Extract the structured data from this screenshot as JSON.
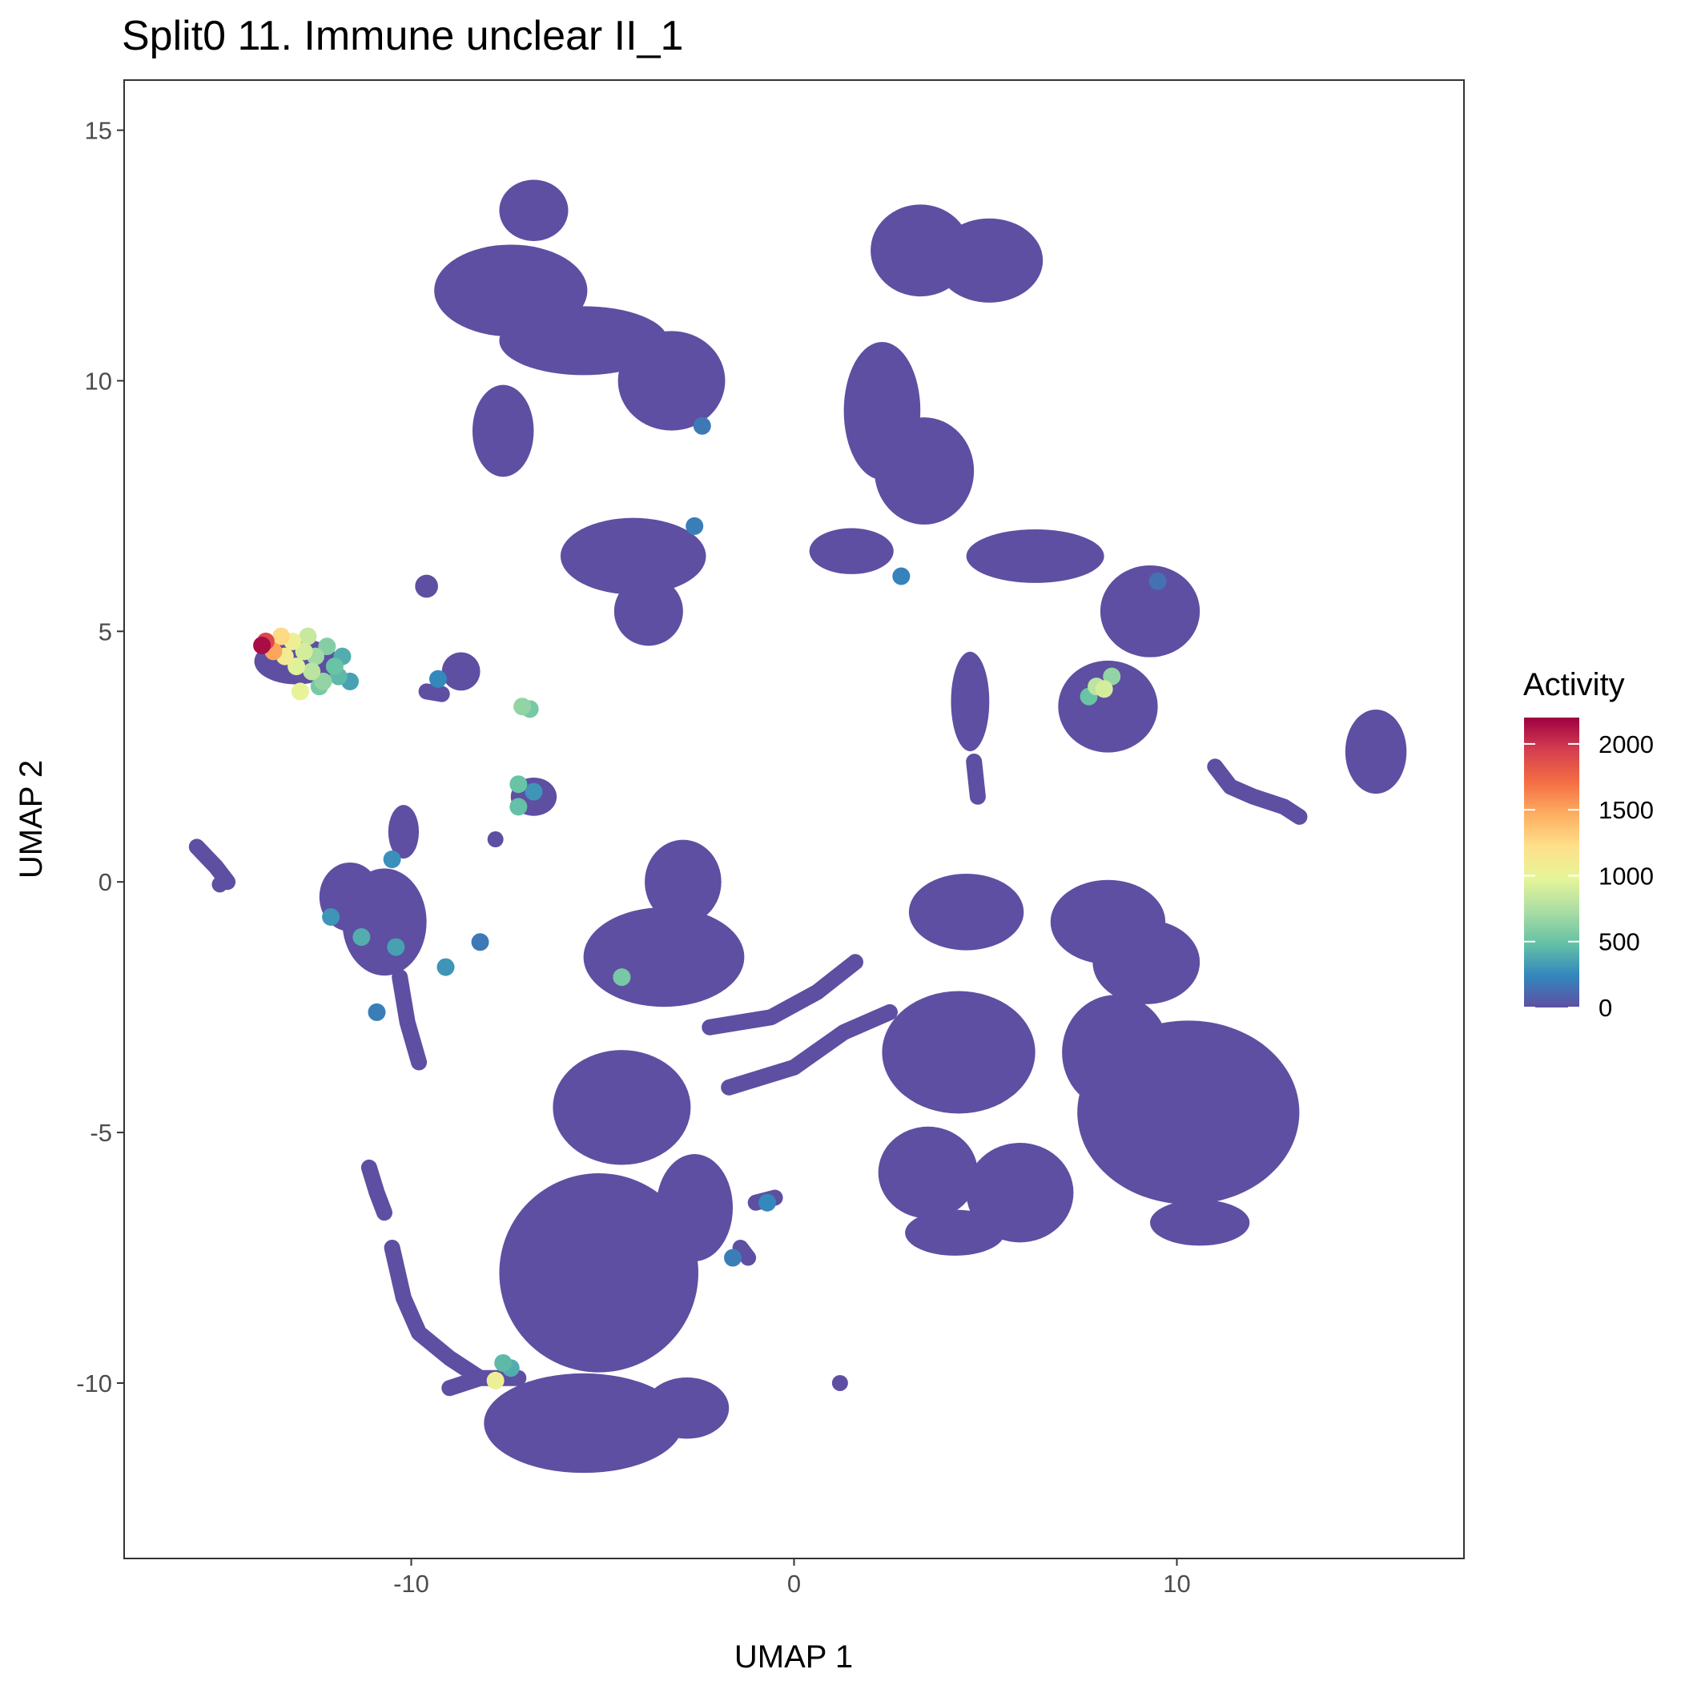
{
  "chart_data": {
    "type": "scatter",
    "title": "Split0 11. Immune unclear II_1",
    "xlabel": "UMAP 1",
    "ylabel": "UMAP 2",
    "xlim": [
      -17.5,
      17.5
    ],
    "ylim": [
      -13.5,
      16
    ],
    "x_ticks": [
      -10,
      0,
      10
    ],
    "x_tick_labels": [
      "-10",
      "0",
      "10"
    ],
    "y_ticks": [
      -10,
      -5,
      0,
      5,
      10,
      15
    ],
    "y_tick_labels": [
      "-10",
      "-5",
      "0",
      "5",
      "10",
      "15"
    ],
    "grid": false,
    "legend": {
      "title": "Activity",
      "position": "right",
      "min": 0,
      "max": 2200,
      "ticks": [
        0,
        500,
        1000,
        1500,
        2000
      ],
      "tick_labels": [
        "0",
        "500",
        "1000",
        "1500",
        "2000"
      ],
      "colormap": [
        "#5e4fa2",
        "#3288bd",
        "#66c2a5",
        "#abdda4",
        "#e6f598",
        "#fee08b",
        "#fdae61",
        "#f46d43",
        "#d53e4f",
        "#9e0142"
      ]
    },
    "points": [
      {
        "x": -13.9,
        "y": 4.72,
        "v": 2150
      },
      {
        "x": -13.8,
        "y": 4.8,
        "v": 1900
      },
      {
        "x": -13.6,
        "y": 4.6,
        "v": 1500
      },
      {
        "x": -13.4,
        "y": 4.9,
        "v": 1250
      },
      {
        "x": -13.3,
        "y": 4.5,
        "v": 1100
      },
      {
        "x": -13.1,
        "y": 4.8,
        "v": 1050
      },
      {
        "x": -13.0,
        "y": 4.3,
        "v": 950
      },
      {
        "x": -12.8,
        "y": 4.6,
        "v": 900
      },
      {
        "x": -12.7,
        "y": 4.9,
        "v": 850
      },
      {
        "x": -12.6,
        "y": 4.2,
        "v": 800
      },
      {
        "x": -12.5,
        "y": 4.5,
        "v": 700
      },
      {
        "x": -12.3,
        "y": 4.0,
        "v": 650
      },
      {
        "x": -12.2,
        "y": 4.7,
        "v": 600
      },
      {
        "x": -12.0,
        "y": 4.3,
        "v": 500
      },
      {
        "x": -11.9,
        "y": 4.1,
        "v": 450
      },
      {
        "x": -11.8,
        "y": 4.5,
        "v": 400
      },
      {
        "x": -11.6,
        "y": 4.0,
        "v": 350
      },
      {
        "x": -12.9,
        "y": 3.8,
        "v": 1000
      },
      {
        "x": -12.4,
        "y": 3.9,
        "v": 550
      },
      {
        "x": -7.1,
        "y": 3.5,
        "v": 650
      },
      {
        "x": -6.9,
        "y": 3.45,
        "v": 550
      },
      {
        "x": -7.2,
        "y": 1.95,
        "v": 500
      },
      {
        "x": -7.2,
        "y": 1.5,
        "v": 480
      },
      {
        "x": -6.8,
        "y": 1.8,
        "v": 300
      },
      {
        "x": 8.1,
        "y": 3.85,
        "v": 900
      },
      {
        "x": 7.9,
        "y": 3.9,
        "v": 800
      },
      {
        "x": 8.3,
        "y": 4.1,
        "v": 650
      },
      {
        "x": 7.7,
        "y": 3.7,
        "v": 500
      },
      {
        "x": -4.5,
        "y": -1.9,
        "v": 550
      },
      {
        "x": -7.8,
        "y": -9.95,
        "v": 1050
      },
      {
        "x": -7.6,
        "y": -9.6,
        "v": 450
      },
      {
        "x": -7.4,
        "y": -9.7,
        "v": 400
      },
      {
        "x": -11.3,
        "y": -1.1,
        "v": 400
      },
      {
        "x": -10.4,
        "y": -1.3,
        "v": 350
      },
      {
        "x": -12.1,
        "y": -0.7,
        "v": 300
      },
      {
        "x": -9.1,
        "y": -1.7,
        "v": 300
      },
      {
        "x": -10.5,
        "y": 0.45,
        "v": 280
      },
      {
        "x": -9.3,
        "y": 4.05,
        "v": 250
      },
      {
        "x": 2.8,
        "y": 6.1,
        "v": 220
      },
      {
        "x": -2.6,
        "y": 7.1,
        "v": 200
      },
      {
        "x": -2.4,
        "y": 9.1,
        "v": 180
      },
      {
        "x": -1.6,
        "y": -7.5,
        "v": 200
      },
      {
        "x": -0.7,
        "y": -6.4,
        "v": 250
      },
      {
        "x": -10.9,
        "y": -2.6,
        "v": 200
      },
      {
        "x": -8.2,
        "y": -1.2,
        "v": 180
      },
      {
        "x": 9.5,
        "y": 6.0,
        "v": 150
      }
    ],
    "clusters": [
      {
        "cx": -6.8,
        "cy": 13.4,
        "rx": 0.9,
        "ry": 0.8
      },
      {
        "cx": -7.4,
        "cy": 11.8,
        "rx": 2.0,
        "ry": 1.2
      },
      {
        "cx": -5.5,
        "cy": 10.8,
        "rx": 2.2,
        "ry": 0.9
      },
      {
        "cx": -3.2,
        "cy": 10.0,
        "rx": 1.4,
        "ry": 1.3
      },
      {
        "cx": -7.6,
        "cy": 9.0,
        "rx": 0.8,
        "ry": 1.2
      },
      {
        "cx": -4.2,
        "cy": 6.5,
        "rx": 1.9,
        "ry": 1.0
      },
      {
        "cx": -3.8,
        "cy": 5.4,
        "rx": 0.9,
        "ry": 0.9
      },
      {
        "cx": 3.3,
        "cy": 12.6,
        "rx": 1.3,
        "ry": 1.2
      },
      {
        "cx": 5.1,
        "cy": 12.4,
        "rx": 1.4,
        "ry": 1.1
      },
      {
        "cx": 2.3,
        "cy": 9.4,
        "rx": 1.0,
        "ry": 1.8
      },
      {
        "cx": 3.4,
        "cy": 8.2,
        "rx": 1.3,
        "ry": 1.4
      },
      {
        "cx": 1.5,
        "cy": 6.6,
        "rx": 1.1,
        "ry": 0.6
      },
      {
        "cx": 6.3,
        "cy": 6.5,
        "rx": 1.8,
        "ry": 0.7
      },
      {
        "cx": 9.3,
        "cy": 5.4,
        "rx": 1.3,
        "ry": 1.2
      },
      {
        "cx": 8.2,
        "cy": 3.5,
        "rx": 1.3,
        "ry": 1.2
      },
      {
        "cx": 4.6,
        "cy": 3.6,
        "rx": 0.5,
        "ry": 1.3
      },
      {
        "cx": -13.0,
        "cy": 4.4,
        "rx": 1.1,
        "ry": 0.6
      },
      {
        "cx": -8.7,
        "cy": 4.2,
        "rx": 0.5,
        "ry": 0.5
      },
      {
        "cx": -9.6,
        "cy": 5.9,
        "rx": 0.3,
        "ry": 0.3
      },
      {
        "cx": -6.8,
        "cy": 1.7,
        "rx": 0.6,
        "ry": 0.5
      },
      {
        "cx": -11.6,
        "cy": -0.3,
        "rx": 0.8,
        "ry": 0.9
      },
      {
        "cx": -10.7,
        "cy": -0.8,
        "rx": 1.1,
        "ry": 1.4
      },
      {
        "cx": -10.2,
        "cy": 1.0,
        "rx": 0.4,
        "ry": 0.7
      },
      {
        "cx": 15.2,
        "cy": 2.6,
        "rx": 0.8,
        "ry": 1.1
      },
      {
        "cx": -3.4,
        "cy": -1.5,
        "rx": 2.1,
        "ry": 1.3
      },
      {
        "cx": -2.9,
        "cy": 0.0,
        "rx": 1.0,
        "ry": 1.1
      },
      {
        "cx": -4.5,
        "cy": -4.5,
        "rx": 1.8,
        "ry": 1.5
      },
      {
        "cx": -5.1,
        "cy": -7.8,
        "rx": 2.6,
        "ry": 2.6
      },
      {
        "cx": -5.5,
        "cy": -10.8,
        "rx": 2.6,
        "ry": 1.3
      },
      {
        "cx": -2.8,
        "cy": -10.5,
        "rx": 1.1,
        "ry": 0.8
      },
      {
        "cx": -2.6,
        "cy": -6.5,
        "rx": 1.0,
        "ry": 1.4
      },
      {
        "cx": 4.5,
        "cy": -0.6,
        "rx": 1.5,
        "ry": 1.0
      },
      {
        "cx": 4.3,
        "cy": -3.4,
        "rx": 2.0,
        "ry": 1.6
      },
      {
        "cx": 3.5,
        "cy": -5.8,
        "rx": 1.3,
        "ry": 1.2
      },
      {
        "cx": 5.9,
        "cy": -6.2,
        "rx": 1.4,
        "ry": 1.3
      },
      {
        "cx": 4.2,
        "cy": -7.0,
        "rx": 1.3,
        "ry": 0.6
      },
      {
        "cx": 8.2,
        "cy": -0.8,
        "rx": 1.5,
        "ry": 1.1
      },
      {
        "cx": 10.3,
        "cy": -4.6,
        "rx": 2.9,
        "ry": 2.4
      },
      {
        "cx": 8.4,
        "cy": -3.4,
        "rx": 1.4,
        "ry": 1.5
      },
      {
        "cx": 9.2,
        "cy": -1.6,
        "rx": 1.4,
        "ry": 1.1
      },
      {
        "cx": 10.6,
        "cy": -6.8,
        "rx": 1.3,
        "ry": 0.6
      }
    ],
    "strands": [
      [
        [
          -15.6,
          0.7
        ],
        [
          -15.1,
          0.3
        ],
        [
          -14.8,
          0.0
        ]
      ],
      [
        [
          -11.1,
          -5.7
        ],
        [
          -10.9,
          -6.2
        ],
        [
          -10.7,
          -6.6
        ]
      ],
      [
        [
          -10.5,
          -7.3
        ],
        [
          -10.2,
          -8.3
        ],
        [
          -9.8,
          -9.0
        ],
        [
          -9.0,
          -9.5
        ],
        [
          -8.2,
          -9.9
        ],
        [
          -7.2,
          -9.9
        ]
      ],
      [
        [
          -9.0,
          -10.1
        ],
        [
          -8.2,
          -9.9
        ]
      ],
      [
        [
          -1.7,
          -4.1
        ],
        [
          0.0,
          -3.7
        ],
        [
          1.3,
          -3.0
        ],
        [
          2.5,
          -2.6
        ]
      ],
      [
        [
          -2.2,
          -2.9
        ],
        [
          -0.6,
          -2.7
        ],
        [
          0.6,
          -2.2
        ],
        [
          1.6,
          -1.6
        ]
      ],
      [
        [
          11.0,
          2.3
        ],
        [
          11.4,
          1.9
        ],
        [
          12.0,
          1.7
        ],
        [
          12.8,
          1.5
        ],
        [
          13.2,
          1.3
        ]
      ],
      [
        [
          -9.6,
          3.8
        ],
        [
          -9.2,
          3.75
        ]
      ],
      [
        [
          -10.3,
          -1.9
        ],
        [
          -10.1,
          -2.8
        ],
        [
          -9.8,
          -3.6
        ]
      ],
      [
        [
          -1.4,
          -7.3
        ],
        [
          -1.2,
          -7.5
        ]
      ],
      [
        [
          -1.0,
          -6.4
        ],
        [
          -0.5,
          -6.3
        ]
      ],
      [
        [
          4.7,
          2.4
        ],
        [
          4.8,
          1.7
        ]
      ]
    ],
    "outliers": [
      {
        "x": 1.2,
        "y": -10.0
      },
      {
        "x": -7.8,
        "y": 0.85
      },
      {
        "x": -15.0,
        "y": -0.05
      }
    ]
  }
}
